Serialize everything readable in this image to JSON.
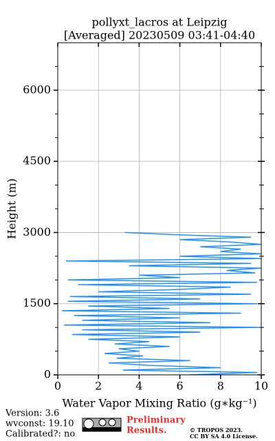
{
  "chart_data": {
    "type": "line",
    "title": "pollyxt_lacros at Leipzig",
    "subtitle": "[Averaged] 20230509 03:41-04:40",
    "x_label": "Water Vapor Mixing Ratio (g∗kg⁻¹)",
    "y_label": "Height (m)",
    "heights": [
      0,
      50,
      100,
      150,
      200,
      250,
      300,
      350,
      400,
      450,
      500,
      550,
      600,
      650,
      700,
      750,
      800,
      850,
      900,
      950,
      1000,
      1050,
      1100,
      1150,
      1200,
      1250,
      1300,
      1350,
      1400,
      1450,
      1500,
      1550,
      1600,
      1650,
      1700,
      1750,
      1800,
      1850,
      1900,
      1950,
      2000,
      2050,
      2100,
      2150,
      2200,
      2250,
      2300,
      2350,
      2400,
      2450,
      2500,
      2550,
      2600,
      2650,
      2700,
      2750,
      2800,
      2850,
      2900,
      2950,
      3000
    ],
    "values": [
      6.5,
      9.8,
      3.2,
      8.0,
      4.5,
      2.5,
      6.5,
      2.9,
      4.2,
      2.3,
      4.0,
      3.0,
      5.5,
      2.8,
      4.5,
      1.5,
      6.0,
      0.7,
      7.0,
      1.2,
      9.9,
      0.3,
      7.5,
      1.2,
      6.0,
      0.8,
      9.0,
      0.2,
      5.5,
      1.5,
      9.8,
      0.5,
      7.0,
      0.6,
      9.5,
      2.0,
      6.0,
      8.5,
      1.0,
      9.8,
      0.5,
      6.0,
      4.0,
      9.7,
      8.3,
      10.0,
      3.5,
      9.5,
      0.4,
      10,
      6.0,
      10,
      8.0,
      9.0,
      7.0,
      10,
      8.5,
      6.0,
      9.5,
      6.0,
      3.3
    ],
    "color": "#1f8fff",
    "xlim": [
      0,
      10
    ],
    "xticks": [
      0,
      2,
      4,
      6,
      8,
      10
    ],
    "ylim": [
      0,
      7000
    ],
    "yticks": [
      0,
      1500,
      3000,
      4500,
      6000
    ],
    "yminorticks": [
      500,
      1000,
      2000,
      2500,
      3500,
      4000,
      5000,
      5500,
      6500
    ],
    "grid": true
  },
  "footer": {
    "version": "Version: 3.6",
    "wvconst": "wvconst:  19.10",
    "calibrated": "Calibrated?: no",
    "warning": [
      "Preliminary",
      "Results."
    ],
    "copyright": [
      "© TROPOS 2023.",
      "CC BY SA 4.0 License."
    ]
  }
}
